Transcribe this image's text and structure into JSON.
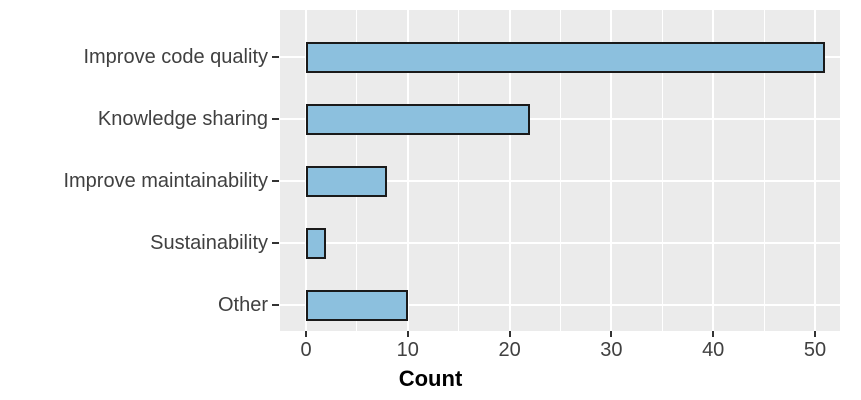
{
  "chart_data": {
    "type": "bar",
    "orientation": "horizontal",
    "title": "",
    "xlabel": "Count",
    "ylabel": "",
    "categories": [
      "Improve code quality",
      "Knowledge sharing",
      "Improve maintainability",
      "Sustainability",
      "Other"
    ],
    "values": [
      51,
      22,
      8,
      2,
      10
    ],
    "x_ticks": [
      0,
      10,
      20,
      30,
      40,
      50
    ],
    "x_minor_ticks": [
      5,
      15,
      25,
      35,
      45
    ],
    "xlim": [
      -2.55,
      52.45
    ],
    "grid": "major-and-minor, white on gray panel",
    "legend": false,
    "style": {
      "panel_bg": "#EBEBEB",
      "grid_color": "#FFFFFF",
      "bar_fill": "#8CC0DE",
      "bar_border": "#1A1A1A",
      "axis_text_color": "#404040",
      "tick_mark_color": "#333333",
      "axis_title_color": "#000000",
      "figure_bg": "#FFFFFF"
    }
  }
}
